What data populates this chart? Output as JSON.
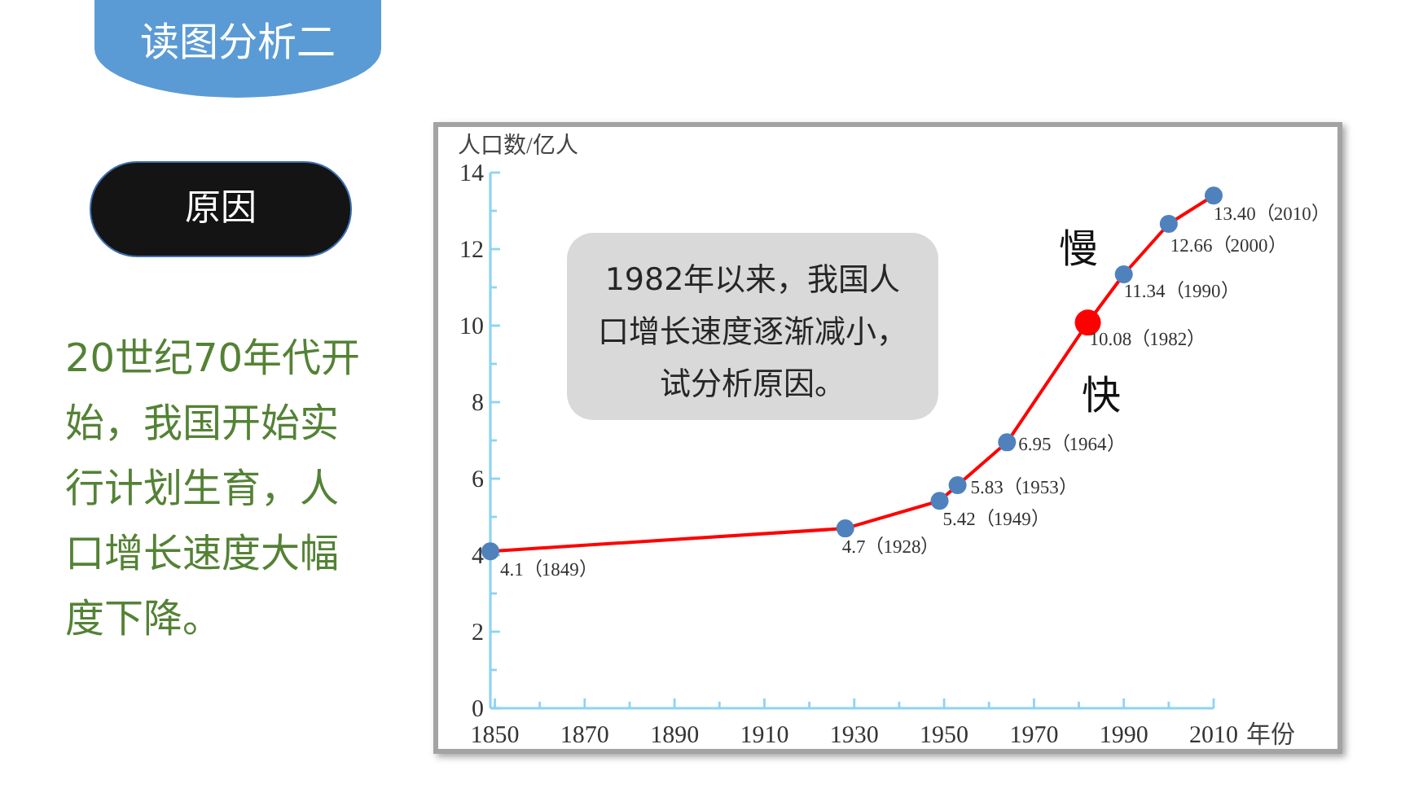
{
  "chart_data": {
    "type": "line",
    "title": "读图分析二",
    "xlabel": "年份",
    "ylabel": "人口数/亿人",
    "x": [
      1849,
      1928,
      1949,
      1953,
      1964,
      1982,
      1990,
      2000,
      2010
    ],
    "series": [
      {
        "color": "#ff0000",
        "colors": [
          "#4f81bd",
          "#4f81bd",
          "#4f81bd",
          "#4f81bd",
          "#4f81bd",
          "#ff0000",
          "#4f81bd",
          "#4f81bd",
          "#4f81bd"
        ],
        "values": [
          4.1,
          4.7,
          5.42,
          5.83,
          6.95,
          10.08,
          11.34,
          12.66,
          13.4
        ],
        "value_labels": [
          "4.1（1849）",
          "4.7（1928）",
          "5.42（1949）",
          "5.83（1953）",
          "6.95（1964）",
          "10.08（1982）",
          "11.34（1990）",
          "12.66（2000）",
          "13.40（2010）"
        ]
      }
    ],
    "xlim": [
      1849,
      2010
    ],
    "xticks": [
      1850,
      {
        "value": 1860,
        "label": null
      },
      1870,
      {
        "value": 1880,
        "label": null
      },
      1890,
      {
        "value": 1900,
        "label": null
      },
      1910,
      {
        "value": 1920,
        "label": null
      },
      1930,
      {
        "value": 1940,
        "label": null
      },
      1950,
      {
        "value": 1960,
        "label": null
      },
      1970,
      {
        "value": 1980,
        "label": null
      },
      1990,
      {
        "value": 2000,
        "label": null
      },
      2010
    ],
    "ylim": [
      0,
      14
    ],
    "yticks": [
      0,
      {
        "value": 1,
        "label": null
      },
      2,
      {
        "value": 3,
        "label": null
      },
      4,
      {
        "value": 5,
        "label": null
      },
      6,
      {
        "value": 7,
        "label": null
      },
      8,
      {
        "value": 9,
        "label": null
      },
      10,
      {
        "value": 11,
        "label": null
      },
      12,
      {
        "value": 13,
        "label": null
      },
      14
    ],
    "marker": "circle",
    "grid": false,
    "annotations": [
      "1982年以来，我国人口增长速度逐渐减小，试分析原因。",
      "原因",
      "20世纪70年代开始，我国开始实行计划生育，人口增长速度大幅度下降。",
      "慢",
      "快"
    ]
  }
}
